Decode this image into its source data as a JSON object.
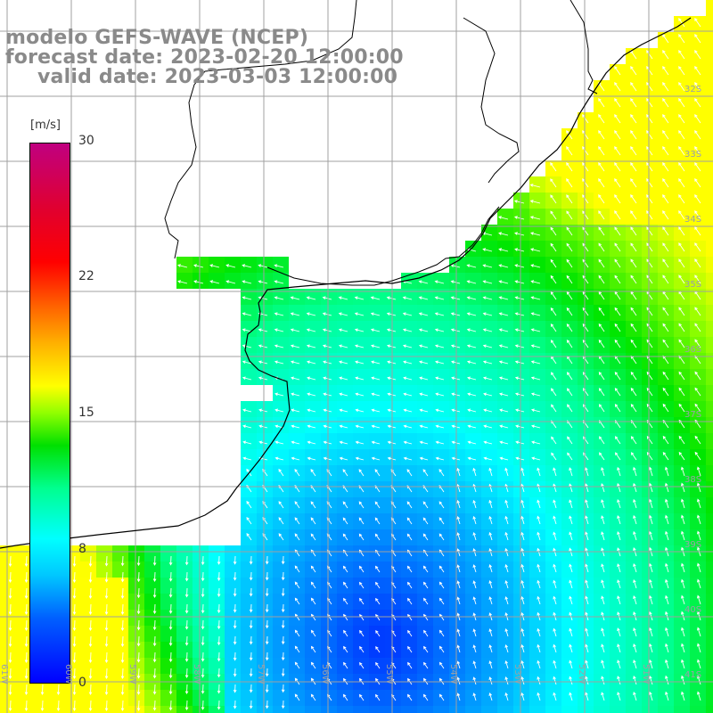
{
  "header": {
    "line1": "modelo GEFS-WAVE (NCEP)",
    "line2": "forecast date: 2023-02-20 12:00:00",
    "line3": "valid date: 2023-03-03 12:00:00"
  },
  "colorbar": {
    "units": "[m/s]",
    "ticks": [
      "30",
      "22",
      "15",
      "8",
      "0"
    ],
    "tick_values": [
      30,
      22,
      15,
      8,
      0
    ],
    "range": [
      0,
      30
    ]
  },
  "lat_labels": [
    "32S",
    "33S",
    "34S",
    "35S",
    "36S",
    "37S",
    "38S",
    "39S",
    "40S",
    "41S"
  ],
  "lon_labels": [
    "61W",
    "60W",
    "59W",
    "58W",
    "57W",
    "56W",
    "55W",
    "54W",
    "53W",
    "52W",
    "51W"
  ],
  "colors": {
    "land": "#ffffff",
    "grid": "#a0a0a0",
    "coast": "#000000",
    "arrows": "#ffffff",
    "title": "#8a8a8a"
  }
}
